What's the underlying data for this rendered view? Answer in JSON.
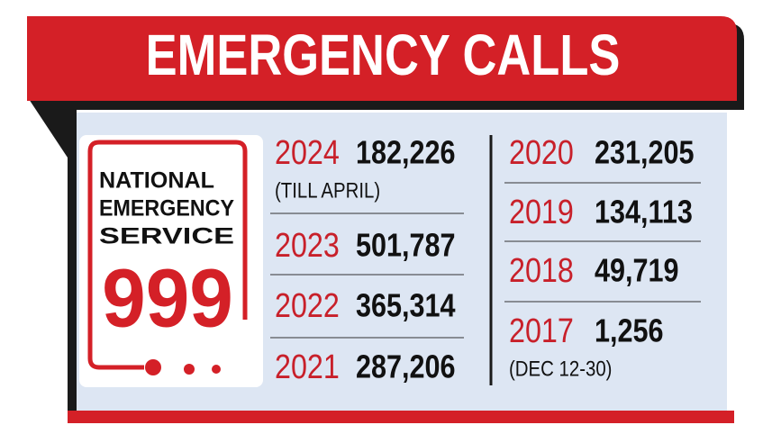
{
  "header": {
    "title": "EMERGENCY CALLS"
  },
  "logo": {
    "lines": [
      "NATIONAL",
      "EMERGENCY",
      "SERVICE"
    ],
    "number": "999"
  },
  "left_column": [
    {
      "year": "2024",
      "calls": "182,226",
      "note": "(TILL APRIL)"
    },
    {
      "year": "2023",
      "calls": "501,787"
    },
    {
      "year": "2022",
      "calls": "365,314"
    },
    {
      "year": "2021",
      "calls": "287,206"
    }
  ],
  "right_column": [
    {
      "year": "2020",
      "calls": "231,205"
    },
    {
      "year": "2019",
      "calls": "134,113"
    },
    {
      "year": "2018",
      "calls": "49,719"
    },
    {
      "year": "2017",
      "calls": "1,256",
      "note": "(DEC 12-30)"
    }
  ]
}
